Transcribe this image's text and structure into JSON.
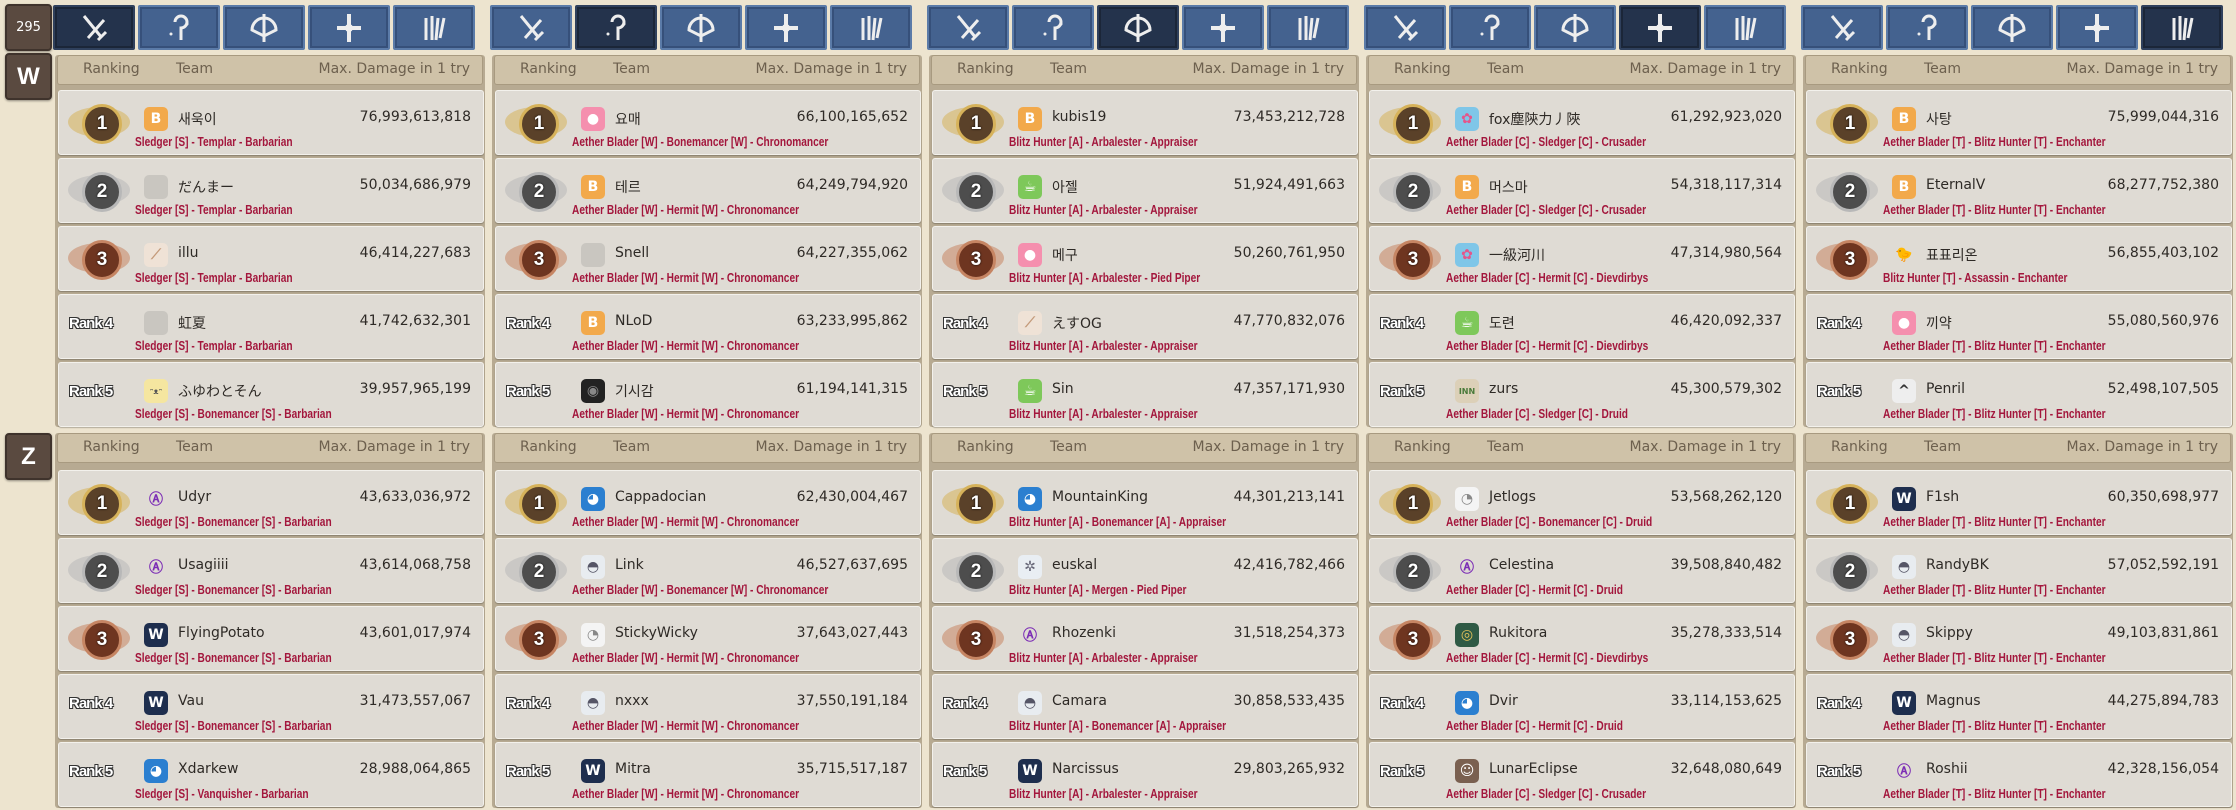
{
  "level_badge": "295",
  "class_tabs": [
    {
      "icon": "sword-icon"
    },
    {
      "icon": "staff-icon"
    },
    {
      "icon": "bow-icon"
    },
    {
      "icon": "holy-cross-icon"
    },
    {
      "icon": "claw-icon"
    }
  ],
  "columns": [
    {
      "selected_tab": 0
    },
    {
      "selected_tab": 1
    },
    {
      "selected_tab": 2
    },
    {
      "selected_tab": 3
    },
    {
      "selected_tab": 4
    }
  ],
  "headers": {
    "ranking": "Ranking",
    "team": "Team",
    "damage": "Max. Damage in 1 try"
  },
  "colors": {
    "team_text": "#a3163c",
    "tab": "#44628f",
    "tab_selected": "#24334c",
    "gold": "#c9a24a",
    "silver": "#a0a0a0",
    "bronze": "#b97a5a"
  },
  "sections": [
    {
      "label": "W",
      "panels": [
        {
          "entries": [
            {
              "rank": "1",
              "medal": "gold",
              "avatar": "b-logo-icon",
              "name": "새욱이",
              "damage": "76,993,613,818",
              "team": "Sledger [S] - Templar - Barbarian"
            },
            {
              "rank": "2",
              "medal": "silver",
              "avatar": "placeholder-icon",
              "name": "だんまー",
              "damage": "50,034,686,979",
              "team": "Sledger [S] - Templar - Barbarian"
            },
            {
              "rank": "3",
              "medal": "bronze",
              "avatar": "feather-icon",
              "name": "illu",
              "damage": "46,414,227,683",
              "team": "Sledger [S] - Templar - Barbarian"
            },
            {
              "rank": "Rank 4",
              "avatar": "placeholder-icon",
              "name": "虹夏",
              "damage": "41,742,632,301",
              "team": "Sledger [S] - Templar - Barbarian"
            },
            {
              "rank": "Rank 5",
              "avatar": "cat-face-icon",
              "name": "ふゆわとそん",
              "damage": "39,957,965,199",
              "team": "Sledger [S] - Bonemancer [S] - Barbarian"
            }
          ]
        },
        {
          "entries": [
            {
              "rank": "1",
              "medal": "gold",
              "avatar": "paw-icon",
              "name": "요매",
              "damage": "66,100,165,652",
              "team": "Aether Blader [W] - Bonemancer [W] - Chronomancer"
            },
            {
              "rank": "2",
              "medal": "silver",
              "avatar": "b-logo-icon",
              "name": "테르",
              "damage": "64,249,794,920",
              "team": "Aether Blader [W] - Hermit [W] - Chronomancer"
            },
            {
              "rank": "3",
              "medal": "bronze",
              "avatar": "placeholder-icon",
              "name": "Snell",
              "damage": "64,227,355,062",
              "team": "Aether Blader [W] - Hermit [W] - Chronomancer"
            },
            {
              "rank": "Rank 4",
              "avatar": "b-logo-icon",
              "name": "NLoD",
              "damage": "63,233,995,862",
              "team": "Aether Blader [W] - Hermit [W] - Chronomancer"
            },
            {
              "rank": "Rank 5",
              "avatar": "dark-emblem-icon",
              "name": "기시감",
              "damage": "61,194,141,315",
              "team": "Aether Blader [W] - Hermit [W] - Chronomancer"
            }
          ]
        },
        {
          "entries": [
            {
              "rank": "1",
              "medal": "gold",
              "avatar": "b-logo-icon",
              "name": "kubis19",
              "damage": "73,453,212,728",
              "team": "Blitz Hunter [A] - Arbalester - Appraiser"
            },
            {
              "rank": "2",
              "medal": "silver",
              "avatar": "cup-bear-icon",
              "name": "아젤",
              "damage": "51,924,491,663",
              "team": "Blitz Hunter [A] - Arbalester - Appraiser"
            },
            {
              "rank": "3",
              "medal": "bronze",
              "avatar": "paw-icon",
              "name": "메구",
              "damage": "50,260,761,950",
              "team": "Blitz Hunter [A] - Arbalester - Pied Piper"
            },
            {
              "rank": "Rank 4",
              "avatar": "feather-icon",
              "name": "えすOG",
              "damage": "47,770,832,076",
              "team": "Blitz Hunter [A] - Arbalester - Appraiser"
            },
            {
              "rank": "Rank 5",
              "avatar": "cup-bear-icon",
              "name": "Sin",
              "damage": "47,357,171,930",
              "team": "Blitz Hunter [A] - Arbalester - Appraiser"
            }
          ]
        },
        {
          "entries": [
            {
              "rank": "1",
              "medal": "gold",
              "avatar": "flower-girl-icon",
              "name": "fox塵陝力丿陜",
              "damage": "61,292,923,020",
              "team": "Aether Blader [C] - Sledger [C] - Crusader"
            },
            {
              "rank": "2",
              "medal": "silver",
              "avatar": "b-logo-icon",
              "name": "머스마",
              "damage": "54,318,117,314",
              "team": "Aether Blader [C] - Sledger [C] - Crusader"
            },
            {
              "rank": "3",
              "medal": "bronze",
              "avatar": "flower-girl-icon",
              "name": "一級河川",
              "damage": "47,314,980,564",
              "team": "Aether Blader [C] - Hermit [C] - Dievdirbys"
            },
            {
              "rank": "Rank 4",
              "avatar": "cup-bear-icon",
              "name": "도련",
              "damage": "46,420,092,337",
              "team": "Aether Blader [C] - Hermit [C] - Dievdirbys"
            },
            {
              "rank": "Rank 5",
              "avatar": "inn-sign-icon",
              "name": "zurs",
              "damage": "45,300,579,302",
              "team": "Aether Blader [C] - Sledger [C] - Druid"
            }
          ]
        },
        {
          "entries": [
            {
              "rank": "1",
              "medal": "gold",
              "avatar": "b-logo-icon",
              "name": "사탕",
              "damage": "75,999,044,316",
              "team": "Aether Blader [T] - Blitz Hunter [T] - Enchanter"
            },
            {
              "rank": "2",
              "medal": "silver",
              "avatar": "b-logo-icon",
              "name": "EternalV",
              "damage": "68,277,752,380",
              "team": "Aether Blader [T] - Blitz Hunter [T] - Enchanter"
            },
            {
              "rank": "3",
              "medal": "bronze",
              "avatar": "chick-icon",
              "name": "표표리온",
              "damage": "56,855,403,102",
              "team": "Blitz Hunter [T] - Assassin - Enchanter"
            },
            {
              "rank": "Rank 4",
              "avatar": "paw-icon",
              "name": "끼약",
              "damage": "55,080,560,976",
              "team": "Aether Blader [T] - Blitz Hunter [T] - Enchanter"
            },
            {
              "rank": "Rank 5",
              "avatar": "wings-icon",
              "name": "Penril",
              "damage": "52,498,107,505",
              "team": "Aether Blader [T] - Blitz Hunter [T] - Enchanter"
            }
          ]
        }
      ]
    },
    {
      "label": "Z",
      "panels": [
        {
          "entries": [
            {
              "rank": "1",
              "medal": "gold",
              "avatar": "anarchy-icon",
              "name": "Udyr",
              "damage": "43,633,036,972",
              "team": "Sledger [S] - Bonemancer [S] - Barbarian"
            },
            {
              "rank": "2",
              "medal": "silver",
              "avatar": "anarchy-icon",
              "name": "Usagiiii",
              "damage": "43,614,068,758",
              "team": "Sledger [S] - Bonemancer [S] - Barbarian"
            },
            {
              "rank": "3",
              "medal": "bronze",
              "avatar": "wolf-icon",
              "name": "FlyingPotato",
              "damage": "43,601,017,974",
              "team": "Sledger [S] - Bonemancer [S] - Barbarian"
            },
            {
              "rank": "Rank 4",
              "avatar": "wolf-icon",
              "name": "Vau",
              "damage": "31,473,557,067",
              "team": "Sledger [S] - Bonemancer [S] - Barbarian"
            },
            {
              "rank": "Rank 5",
              "avatar": "penguin-icon",
              "name": "Xdarkew",
              "damage": "28,988,064,865",
              "team": "Sledger [S] - Vanquisher - Barbarian"
            }
          ]
        },
        {
          "entries": [
            {
              "rank": "1",
              "medal": "gold",
              "avatar": "penguin-icon",
              "name": "Cappadocian",
              "damage": "62,430,004,467",
              "team": "Aether Blader [W] - Hermit [W] - Chronomancer"
            },
            {
              "rank": "2",
              "medal": "silver",
              "avatar": "robot-pod-icon",
              "name": "Link",
              "damage": "46,527,637,695",
              "team": "Aether Blader [W] - Bonemancer [W] - Chronomancer"
            },
            {
              "rank": "3",
              "medal": "bronze",
              "avatar": "duck-icon",
              "name": "StickyWicky",
              "damage": "37,643,027,443",
              "team": "Aether Blader [W] - Hermit [W] - Chronomancer"
            },
            {
              "rank": "Rank 4",
              "avatar": "robot-pod-icon",
              "name": "nxxx",
              "damage": "37,550,191,184",
              "team": "Aether Blader [W] - Hermit [W] - Chronomancer"
            },
            {
              "rank": "Rank 5",
              "avatar": "wolf-icon",
              "name": "Mitra",
              "damage": "35,715,517,187",
              "team": "Aether Blader [W] - Hermit [W] - Chronomancer"
            }
          ]
        },
        {
          "entries": [
            {
              "rank": "1",
              "medal": "gold",
              "avatar": "penguin-icon",
              "name": "MountainKing",
              "damage": "44,301,213,141",
              "team": "Blitz Hunter [A] - Bonemancer [A] - Appraiser"
            },
            {
              "rank": "2",
              "medal": "silver",
              "avatar": "yeti-icon",
              "name": "euskal",
              "damage": "42,416,782,466",
              "team": "Blitz Hunter [A] - Mergen - Pied Piper"
            },
            {
              "rank": "3",
              "medal": "bronze",
              "avatar": "anarchy-icon",
              "name": "Rhozenki",
              "damage": "31,518,254,373",
              "team": "Blitz Hunter [A] - Arbalester - Appraiser"
            },
            {
              "rank": "Rank 4",
              "avatar": "robot-pod-icon",
              "name": "Camara",
              "damage": "30,858,533,435",
              "team": "Blitz Hunter [A] - Bonemancer [A] - Appraiser"
            },
            {
              "rank": "Rank 5",
              "avatar": "wolf-icon",
              "name": "Narcissus",
              "damage": "29,803,265,932",
              "team": "Blitz Hunter [A] - Arbalester - Appraiser"
            }
          ]
        },
        {
          "entries": [
            {
              "rank": "1",
              "medal": "gold",
              "avatar": "duck-icon",
              "name": "Jetlogs",
              "damage": "53,568,262,120",
              "team": "Aether Blader [C] - Bonemancer [C] - Druid"
            },
            {
              "rank": "2",
              "medal": "silver",
              "avatar": "anarchy-icon",
              "name": "Celestina",
              "damage": "39,508,840,482",
              "team": "Aether Blader [C] - Hermit [C] - Druid"
            },
            {
              "rank": "3",
              "medal": "bronze",
              "avatar": "round-badge-icon",
              "name": "Rukitora",
              "damage": "35,278,333,514",
              "team": "Aether Blader [C] - Hermit [C] - Dievdirbys"
            },
            {
              "rank": "Rank 4",
              "avatar": "penguin-icon",
              "name": "Dvir",
              "damage": "33,114,153,625",
              "team": "Aether Blader [C] - Hermit [C] - Druid"
            },
            {
              "rank": "Rank 5",
              "avatar": "character-portrait-icon",
              "name": "LunarEclipse",
              "damage": "32,648,080,649",
              "team": "Aether Blader [C] - Sledger [C] - Crusader"
            }
          ]
        },
        {
          "entries": [
            {
              "rank": "1",
              "medal": "gold",
              "avatar": "wolf-icon",
              "name": "F1sh",
              "damage": "60,350,698,977",
              "team": "Aether Blader [T] - Blitz Hunter [T] - Enchanter"
            },
            {
              "rank": "2",
              "medal": "silver",
              "avatar": "robot-pod-icon",
              "name": "RandyBK",
              "damage": "57,052,592,191",
              "team": "Aether Blader [T] - Blitz Hunter [T] - Enchanter"
            },
            {
              "rank": "3",
              "medal": "bronze",
              "avatar": "robot-pod-icon",
              "name": "Skippy",
              "damage": "49,103,831,861",
              "team": "Aether Blader [T] - Blitz Hunter [T] - Enchanter"
            },
            {
              "rank": "Rank 4",
              "avatar": "wolf-icon",
              "name": "Magnus",
              "damage": "44,275,894,783",
              "team": "Aether Blader [T] - Blitz Hunter [T] - Enchanter"
            },
            {
              "rank": "Rank 5",
              "avatar": "anarchy-icon",
              "name": "Roshii",
              "damage": "42,328,156,054",
              "team": "Aether Blader [T] - Blitz Hunter [T] - Enchanter"
            }
          ]
        }
      ]
    }
  ]
}
